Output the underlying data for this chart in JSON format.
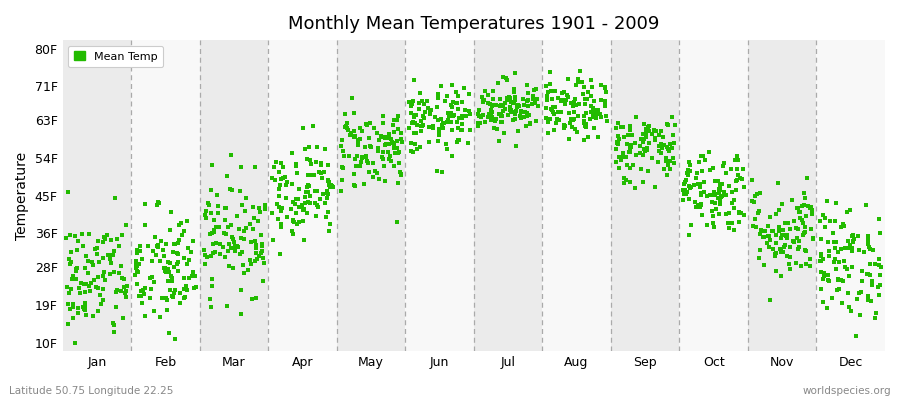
{
  "title": "Monthly Mean Temperatures 1901 - 2009",
  "ylabel": "Temperature",
  "xlabel_bottom_left": "Latitude 50.75 Longitude 22.25",
  "xlabel_bottom_right": "worldspecies.org",
  "legend_label": "Mean Temp",
  "yticks": [
    10,
    19,
    28,
    36,
    45,
    54,
    63,
    71,
    80
  ],
  "ytick_labels": [
    "10F",
    "19F",
    "28F",
    "36F",
    "45F",
    "54F",
    "63F",
    "71F",
    "80F"
  ],
  "ylim": [
    8,
    82
  ],
  "dot_color": "#22bb00",
  "dot_size": 7,
  "fig_bg_color": "#ffffff",
  "band_color_odd": "#ebebeb",
  "band_color_even": "#f8f8f8",
  "dashed_line_color": "#aaaaaa",
  "months": [
    "Jan",
    "Feb",
    "Mar",
    "Apr",
    "May",
    "Jun",
    "Jul",
    "Aug",
    "Sep",
    "Oct",
    "Nov",
    "Dec"
  ],
  "monthly_mean_C": [
    -3.8,
    -2.8,
    2.0,
    8.0,
    13.5,
    17.0,
    19.0,
    18.5,
    13.5,
    8.0,
    2.5,
    -1.5
  ],
  "monthly_std_C": [
    4.2,
    4.2,
    3.8,
    3.2,
    2.8,
    2.3,
    1.8,
    2.0,
    2.3,
    2.8,
    3.2,
    3.8
  ],
  "years": 109,
  "start_year": 1901,
  "end_year": 2009
}
